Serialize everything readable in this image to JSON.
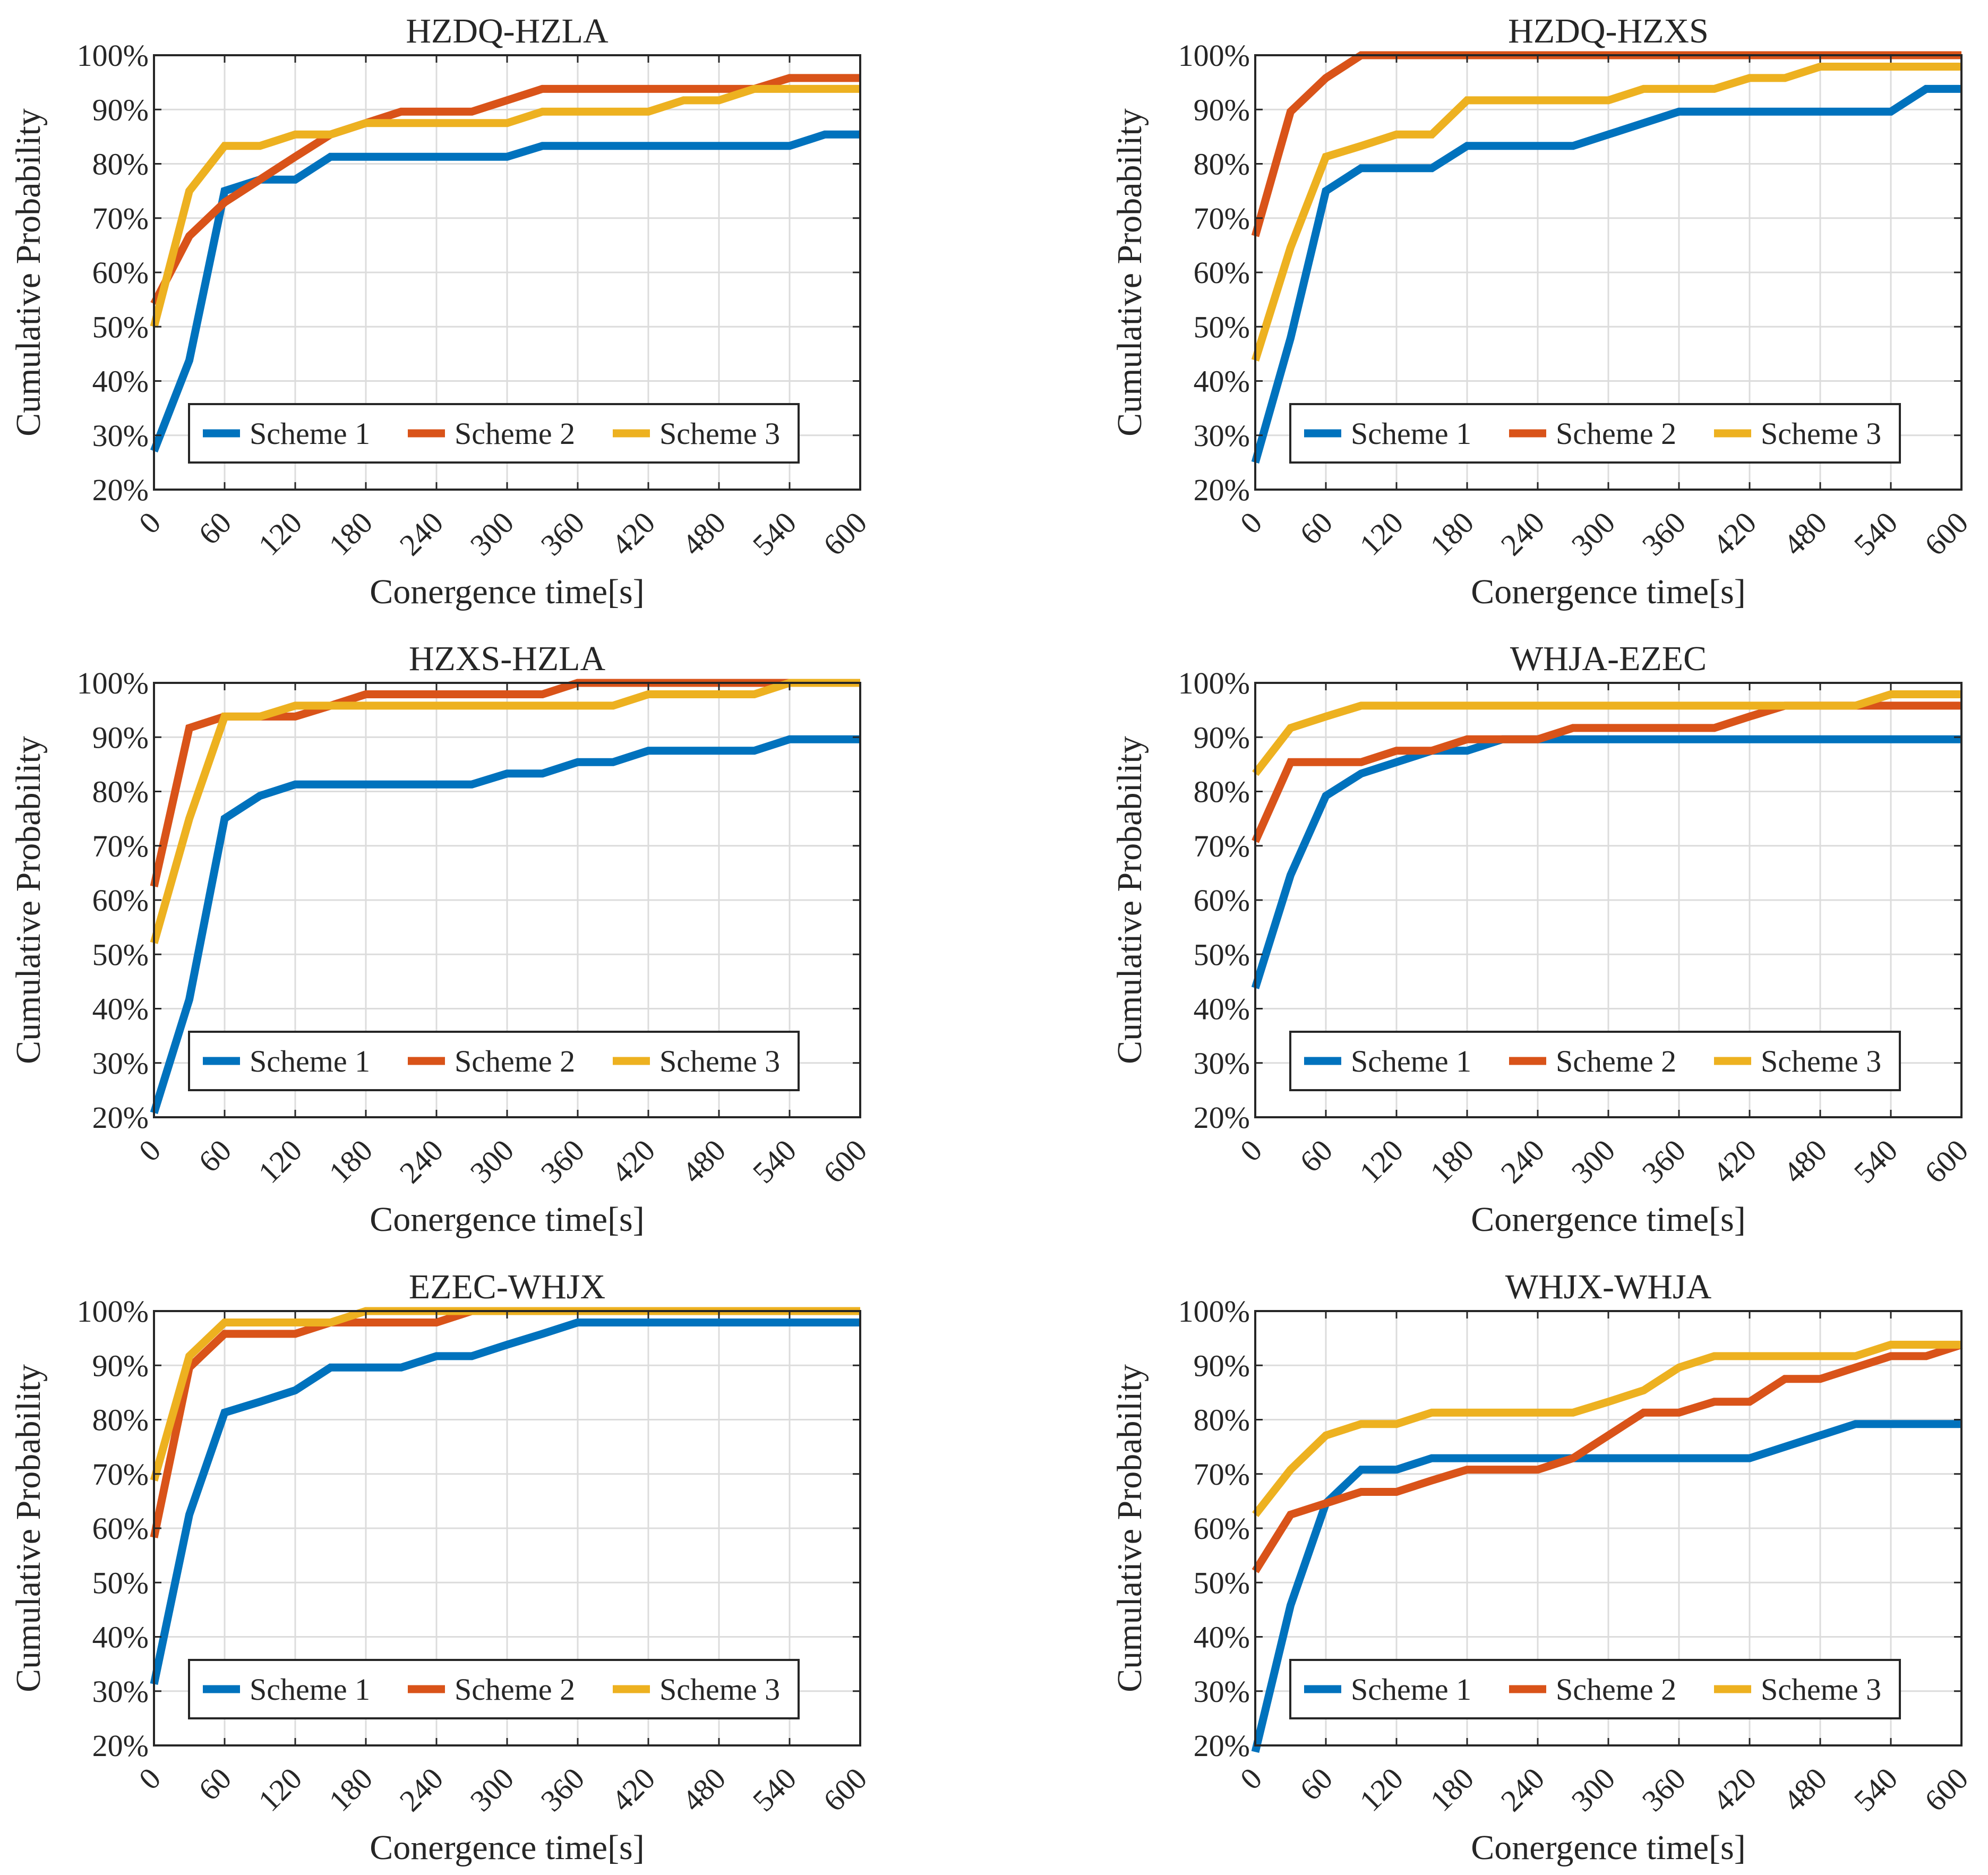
{
  "colors": {
    "scheme1": "#0072BD",
    "scheme2": "#D95319",
    "scheme3": "#EDB120",
    "grid": "#dcdcdc",
    "axis": "#262626"
  },
  "chart_data": [
    {
      "type": "line",
      "title": "HZDQ-HZLA",
      "xlabel": "Conergence time[s]",
      "ylabel": "Cumulative Probability",
      "x_ticks": [
        0,
        60,
        120,
        180,
        240,
        300,
        360,
        420,
        480,
        540,
        600
      ],
      "y_ticks": [
        "20%",
        "30%",
        "40%",
        "50%",
        "60%",
        "70%",
        "80%",
        "90%",
        "100%"
      ],
      "xlim": [
        0,
        600
      ],
      "ylim": [
        20,
        100
      ],
      "grid": true,
      "legend_position": "lower-left",
      "series": [
        {
          "name": "Scheme 1",
          "x": [
            0,
            30,
            60,
            90,
            120,
            150,
            180,
            210,
            240,
            270,
            300,
            330,
            360,
            390,
            420,
            450,
            480,
            510,
            540,
            570,
            600
          ],
          "y": [
            27.1,
            43.8,
            75,
            77.1,
            77.1,
            81.3,
            81.3,
            81.3,
            81.3,
            81.3,
            81.3,
            83.3,
            83.3,
            83.3,
            83.3,
            83.3,
            83.3,
            83.3,
            83.3,
            85.4,
            85.4
          ]
        },
        {
          "name": "Scheme 2",
          "x": [
            0,
            30,
            60,
            90,
            120,
            150,
            180,
            210,
            240,
            270,
            300,
            330,
            360,
            390,
            420,
            450,
            480,
            510,
            540,
            570,
            600
          ],
          "y": [
            54.2,
            66.7,
            72.9,
            77.1,
            81.3,
            85.4,
            87.5,
            89.6,
            89.6,
            89.6,
            91.7,
            93.8,
            93.8,
            93.8,
            93.8,
            93.8,
            93.8,
            93.8,
            95.8,
            95.8,
            95.8
          ]
        },
        {
          "name": "Scheme 3",
          "x": [
            0,
            30,
            60,
            90,
            120,
            150,
            180,
            210,
            240,
            270,
            300,
            330,
            360,
            390,
            420,
            450,
            480,
            510,
            540,
            570,
            600
          ],
          "y": [
            50,
            75,
            83.3,
            83.3,
            85.4,
            85.4,
            87.5,
            87.5,
            87.5,
            87.5,
            87.5,
            89.6,
            89.6,
            89.6,
            89.6,
            91.7,
            91.7,
            93.8,
            93.8,
            93.8,
            93.8
          ]
        }
      ]
    },
    {
      "type": "line",
      "title": "HZDQ-HZXS",
      "xlabel": "Conergence time[s]",
      "ylabel": "Cumulative Probability",
      "x_ticks": [
        0,
        60,
        120,
        180,
        240,
        300,
        360,
        420,
        480,
        540,
        600
      ],
      "y_ticks": [
        "20%",
        "30%",
        "40%",
        "50%",
        "60%",
        "70%",
        "80%",
        "90%",
        "100%"
      ],
      "xlim": [
        0,
        600
      ],
      "ylim": [
        20,
        100
      ],
      "grid": true,
      "legend_position": "lower-left",
      "series": [
        {
          "name": "Scheme 1",
          "x": [
            0,
            30,
            60,
            90,
            120,
            150,
            180,
            210,
            240,
            270,
            300,
            330,
            360,
            390,
            420,
            450,
            480,
            510,
            540,
            570,
            600
          ],
          "y": [
            25,
            47.9,
            75,
            79.2,
            79.2,
            79.2,
            83.3,
            83.3,
            83.3,
            83.3,
            85.4,
            87.5,
            89.6,
            89.6,
            89.6,
            89.6,
            89.6,
            89.6,
            89.6,
            93.8,
            93.8
          ]
        },
        {
          "name": "Scheme 2",
          "x": [
            0,
            30,
            60,
            90,
            120,
            150,
            180,
            210,
            240,
            270,
            300,
            330,
            360,
            390,
            420,
            450,
            480,
            510,
            540,
            570,
            600
          ],
          "y": [
            66.7,
            89.6,
            95.8,
            100,
            100,
            100,
            100,
            100,
            100,
            100,
            100,
            100,
            100,
            100,
            100,
            100,
            100,
            100,
            100,
            100,
            100
          ]
        },
        {
          "name": "Scheme 3",
          "x": [
            0,
            30,
            60,
            90,
            120,
            150,
            180,
            210,
            240,
            270,
            300,
            330,
            360,
            390,
            420,
            450,
            480,
            510,
            540,
            570,
            600
          ],
          "y": [
            43.8,
            64.6,
            81.3,
            83.3,
            85.4,
            85.4,
            91.7,
            91.7,
            91.7,
            91.7,
            91.7,
            93.8,
            93.8,
            93.8,
            95.8,
            95.8,
            97.9,
            97.9,
            97.9,
            97.9,
            97.9
          ]
        }
      ]
    },
    {
      "type": "line",
      "title": "HZXS-HZLA",
      "xlabel": "Conergence time[s]",
      "ylabel": "Cumulative Probability",
      "x_ticks": [
        0,
        60,
        120,
        180,
        240,
        300,
        360,
        420,
        480,
        540,
        600
      ],
      "y_ticks": [
        "20%",
        "30%",
        "40%",
        "50%",
        "60%",
        "70%",
        "80%",
        "90%",
        "100%"
      ],
      "xlim": [
        0,
        600
      ],
      "ylim": [
        20,
        100
      ],
      "grid": true,
      "legend_position": "lower-left",
      "series": [
        {
          "name": "Scheme 1",
          "x": [
            0,
            30,
            60,
            90,
            120,
            150,
            180,
            210,
            240,
            270,
            300,
            330,
            360,
            390,
            420,
            450,
            480,
            510,
            540,
            570,
            600
          ],
          "y": [
            20.8,
            41.7,
            75,
            79.2,
            81.3,
            81.3,
            81.3,
            81.3,
            81.3,
            81.3,
            83.3,
            83.3,
            85.4,
            85.4,
            87.5,
            87.5,
            87.5,
            87.5,
            89.6,
            89.6,
            89.6
          ]
        },
        {
          "name": "Scheme 2",
          "x": [
            0,
            30,
            60,
            90,
            120,
            150,
            180,
            210,
            240,
            270,
            300,
            330,
            360,
            390,
            420,
            450,
            480,
            510,
            540,
            570,
            600
          ],
          "y": [
            62.5,
            91.7,
            93.8,
            93.8,
            93.8,
            95.8,
            97.9,
            97.9,
            97.9,
            97.9,
            97.9,
            97.9,
            100,
            100,
            100,
            100,
            100,
            100,
            100,
            100,
            100
          ]
        },
        {
          "name": "Scheme 3",
          "x": [
            0,
            30,
            60,
            90,
            120,
            150,
            180,
            210,
            240,
            270,
            300,
            330,
            360,
            390,
            420,
            450,
            480,
            510,
            540,
            570,
            600
          ],
          "y": [
            52.1,
            75,
            93.8,
            93.8,
            95.8,
            95.8,
            95.8,
            95.8,
            95.8,
            95.8,
            95.8,
            95.8,
            95.8,
            95.8,
            97.9,
            97.9,
            97.9,
            97.9,
            100,
            100,
            100
          ]
        }
      ]
    },
    {
      "type": "line",
      "title": "WHJA-EZEC",
      "xlabel": "Conergence time[s]",
      "ylabel": "Cumulative Probability",
      "x_ticks": [
        0,
        60,
        120,
        180,
        240,
        300,
        360,
        420,
        480,
        540,
        600
      ],
      "y_ticks": [
        "20%",
        "30%",
        "40%",
        "50%",
        "60%",
        "70%",
        "80%",
        "90%",
        "100%"
      ],
      "xlim": [
        0,
        600
      ],
      "ylim": [
        20,
        100
      ],
      "grid": true,
      "legend_position": "lower-left",
      "series": [
        {
          "name": "Scheme 1",
          "x": [
            0,
            30,
            60,
            90,
            120,
            150,
            180,
            210,
            240,
            270,
            300,
            330,
            360,
            390,
            420,
            450,
            480,
            510,
            540,
            570,
            600
          ],
          "y": [
            43.8,
            64.6,
            79.2,
            83.3,
            85.4,
            87.5,
            87.5,
            89.6,
            89.6,
            89.6,
            89.6,
            89.6,
            89.6,
            89.6,
            89.6,
            89.6,
            89.6,
            89.6,
            89.6,
            89.6,
            89.6
          ]
        },
        {
          "name": "Scheme 2",
          "x": [
            0,
            30,
            60,
            90,
            120,
            150,
            180,
            210,
            240,
            270,
            300,
            330,
            360,
            390,
            420,
            450,
            480,
            510,
            540,
            570,
            600
          ],
          "y": [
            70.8,
            85.4,
            85.4,
            85.4,
            87.5,
            87.5,
            89.6,
            89.6,
            89.6,
            91.7,
            91.7,
            91.7,
            91.7,
            91.7,
            93.8,
            95.8,
            95.8,
            95.8,
            95.8,
            95.8,
            95.8
          ]
        },
        {
          "name": "Scheme 3",
          "x": [
            0,
            30,
            60,
            90,
            120,
            150,
            180,
            210,
            240,
            270,
            300,
            330,
            360,
            390,
            420,
            450,
            480,
            510,
            540,
            570,
            600
          ],
          "y": [
            83.3,
            91.7,
            93.8,
            95.8,
            95.8,
            95.8,
            95.8,
            95.8,
            95.8,
            95.8,
            95.8,
            95.8,
            95.8,
            95.8,
            95.8,
            95.8,
            95.8,
            95.8,
            97.9,
            97.9,
            97.9
          ]
        }
      ]
    },
    {
      "type": "line",
      "title": "EZEC-WHJX",
      "xlabel": "Conergence time[s]",
      "ylabel": "Cumulative Probability",
      "x_ticks": [
        0,
        60,
        120,
        180,
        240,
        300,
        360,
        420,
        480,
        540,
        600
      ],
      "y_ticks": [
        "20%",
        "30%",
        "40%",
        "50%",
        "60%",
        "70%",
        "80%",
        "90%",
        "100%"
      ],
      "xlim": [
        0,
        600
      ],
      "ylim": [
        20,
        100
      ],
      "grid": true,
      "legend_position": "lower-left",
      "series": [
        {
          "name": "Scheme 1",
          "x": [
            0,
            30,
            60,
            90,
            120,
            150,
            180,
            210,
            240,
            270,
            300,
            330,
            360,
            390,
            420,
            450,
            480,
            510,
            540,
            570,
            600
          ],
          "y": [
            31.3,
            62.5,
            81.3,
            83.3,
            85.4,
            89.6,
            89.6,
            89.6,
            91.7,
            91.7,
            93.8,
            95.8,
            97.9,
            97.9,
            97.9,
            97.9,
            97.9,
            97.9,
            97.9,
            97.9,
            97.9
          ]
        },
        {
          "name": "Scheme 2",
          "x": [
            0,
            30,
            60,
            90,
            120,
            150,
            180,
            210,
            240,
            270,
            300,
            330,
            360,
            390,
            420,
            450,
            480,
            510,
            540,
            570,
            600
          ],
          "y": [
            58.3,
            89.6,
            95.8,
            95.8,
            95.8,
            97.9,
            97.9,
            97.9,
            97.9,
            100,
            100,
            100,
            100,
            100,
            100,
            100,
            100,
            100,
            100,
            100,
            100
          ]
        },
        {
          "name": "Scheme 3",
          "x": [
            0,
            30,
            60,
            90,
            120,
            150,
            180,
            210,
            240,
            270,
            300,
            330,
            360,
            390,
            420,
            450,
            480,
            510,
            540,
            570,
            600
          ],
          "y": [
            68.8,
            91.7,
            97.9,
            97.9,
            97.9,
            97.9,
            100,
            100,
            100,
            100,
            100,
            100,
            100,
            100,
            100,
            100,
            100,
            100,
            100,
            100,
            100
          ]
        }
      ]
    },
    {
      "type": "line",
      "title": "WHJX-WHJA",
      "xlabel": "Conergence time[s]",
      "ylabel": "Cumulative Probability",
      "x_ticks": [
        0,
        60,
        120,
        180,
        240,
        300,
        360,
        420,
        480,
        540,
        600
      ],
      "y_ticks": [
        "20%",
        "30%",
        "40%",
        "50%",
        "60%",
        "70%",
        "80%",
        "90%",
        "100%"
      ],
      "xlim": [
        0,
        600
      ],
      "ylim": [
        20,
        100
      ],
      "grid": true,
      "legend_position": "lower-left",
      "series": [
        {
          "name": "Scheme 1",
          "x": [
            0,
            30,
            60,
            90,
            120,
            150,
            180,
            210,
            240,
            270,
            300,
            330,
            360,
            390,
            420,
            450,
            480,
            510,
            540,
            570,
            600
          ],
          "y": [
            18.8,
            45.8,
            64.6,
            70.8,
            70.8,
            72.9,
            72.9,
            72.9,
            72.9,
            72.9,
            72.9,
            72.9,
            72.9,
            72.9,
            72.9,
            75,
            77.1,
            79.2,
            79.2,
            79.2,
            79.2
          ]
        },
        {
          "name": "Scheme 2",
          "x": [
            0,
            30,
            60,
            90,
            120,
            150,
            180,
            210,
            240,
            270,
            300,
            330,
            360,
            390,
            420,
            450,
            480,
            510,
            540,
            570,
            600
          ],
          "y": [
            52.1,
            62.5,
            64.6,
            66.7,
            66.7,
            68.8,
            70.8,
            70.8,
            70.8,
            72.9,
            77.1,
            81.3,
            81.3,
            83.3,
            83.3,
            87.5,
            87.5,
            89.6,
            91.7,
            91.7,
            93.8
          ]
        },
        {
          "name": "Scheme 3",
          "x": [
            0,
            30,
            60,
            90,
            120,
            150,
            180,
            210,
            240,
            270,
            300,
            330,
            360,
            390,
            420,
            450,
            480,
            510,
            540,
            570,
            600
          ],
          "y": [
            62.5,
            70.8,
            77.1,
            79.2,
            79.2,
            81.3,
            81.3,
            81.3,
            81.3,
            81.3,
            83.3,
            85.4,
            89.6,
            91.7,
            91.7,
            91.7,
            91.7,
            91.7,
            93.8,
            93.8,
            93.8
          ]
        }
      ]
    }
  ]
}
